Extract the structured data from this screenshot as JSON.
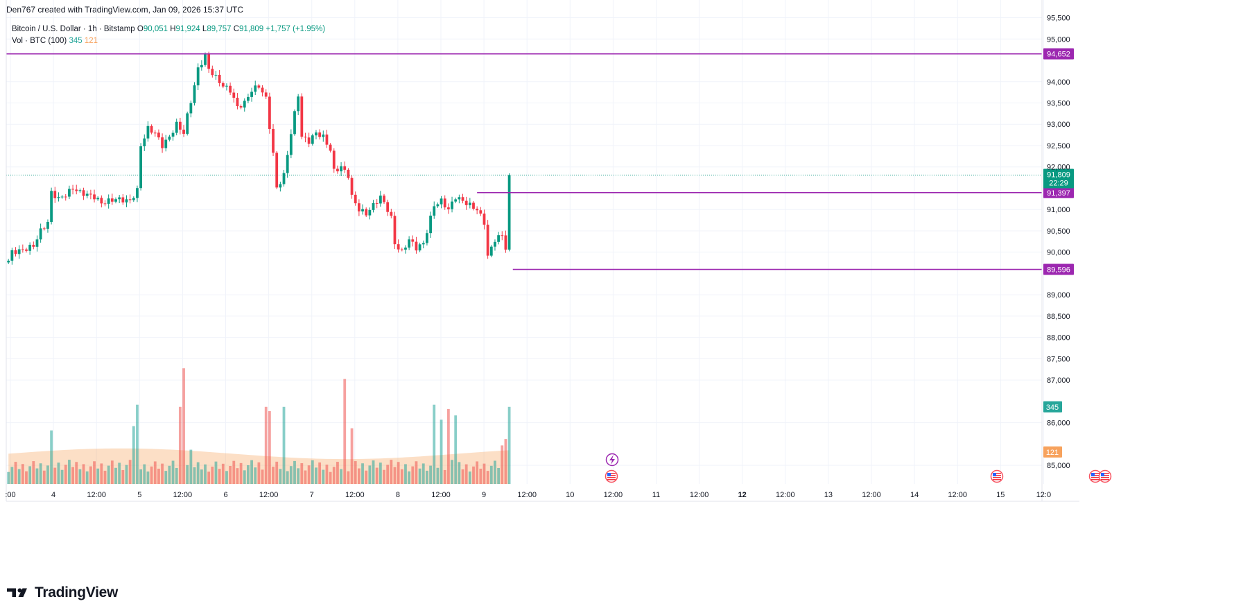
{
  "header": {
    "created_by": "Den767 created with TradingView.com, Jan 09, 2026 15:37 UTC"
  },
  "legend": {
    "symbol": "Bitcoin / U.S. Dollar · 1h · Bitstamp",
    "o_label": "O",
    "o_value": "90,051",
    "h_label": "H",
    "h_value": "91,924",
    "l_label": "L",
    "l_value": "89,757",
    "c_label": "C",
    "c_value": "91,809",
    "change": "+1,757 (+1.95%)",
    "vol_name": "Vol · BTC (100)",
    "vol_value": "345",
    "vol_ma_value": "121"
  },
  "brand": {
    "name": "TradingView"
  },
  "colors": {
    "up": "#089981",
    "down": "#f23645",
    "vol_up": "#26a69a",
    "vol_down": "#ef5350",
    "vol_ma": "#f7a25d",
    "level_line": "#9c27b0",
    "price_label_bg": "#9c27b0",
    "last_price_bg": "#089981",
    "grid": "#f0f3fa",
    "axis_text": "#131722"
  },
  "chart_data": {
    "type": "candlestick",
    "symbol": "BTCUSD",
    "interval": "1h",
    "exchange": "Bitstamp",
    "y_axis": {
      "range": [
        84700,
        95800
      ],
      "ticks": [
        "95,500",
        "95,000",
        "94,000",
        "93,500",
        "93,000",
        "92,500",
        "92,000",
        "91,000",
        "90,500",
        "90,000",
        "89,000",
        "88,500",
        "88,000",
        "87,500",
        "87,000",
        "86,000",
        "85,000"
      ],
      "labels": {
        "last_price": "91,809",
        "countdown": "22:29",
        "vol_value": "345",
        "vol_ma": "121"
      }
    },
    "x_axis": {
      "ticks": [
        ":00",
        "4",
        "12:00",
        "5",
        "12:00",
        "6",
        "12:00",
        "7",
        "12:00",
        "8",
        "12:00",
        "9",
        "12:00",
        "10",
        "12:00",
        "11",
        "12:00",
        "12",
        "12:00",
        "13",
        "12:00",
        "14",
        "12:00",
        "15",
        "12:0"
      ],
      "bold_ticks": [
        "12"
      ]
    },
    "last_price": 91809,
    "horizontal_levels": [
      {
        "label": "94,652",
        "price": 94652
      },
      {
        "label": "91,397",
        "price": 91397
      },
      {
        "label": "89,596",
        "price": 89596
      }
    ],
    "candle_path": [
      [
        0,
        89800
      ],
      [
        1,
        90000
      ],
      [
        4,
        90050
      ],
      [
        7,
        90150
      ],
      [
        9,
        90500
      ],
      [
        11,
        90700
      ],
      [
        12,
        91400
      ],
      [
        14,
        91250
      ],
      [
        16,
        91350
      ],
      [
        18,
        91500
      ],
      [
        20,
        91400
      ],
      [
        24,
        91300
      ],
      [
        26,
        91150
      ],
      [
        30,
        91250
      ],
      [
        34,
        91200
      ],
      [
        36,
        91450
      ],
      [
        37,
        92500
      ],
      [
        39,
        92900
      ],
      [
        41,
        92800
      ],
      [
        43,
        92500
      ],
      [
        45,
        92700
      ],
      [
        47,
        93000
      ],
      [
        49,
        92800
      ],
      [
        50,
        93200
      ],
      [
        52,
        93900
      ],
      [
        53,
        94300
      ],
      [
        55,
        94600
      ],
      [
        56,
        94300
      ],
      [
        58,
        94100
      ],
      [
        60,
        93900
      ],
      [
        62,
        93800
      ],
      [
        64,
        93400
      ],
      [
        66,
        93500
      ],
      [
        68,
        93800
      ],
      [
        70,
        93900
      ],
      [
        72,
        93600
      ],
      [
        74,
        92300
      ],
      [
        75,
        91500
      ],
      [
        77,
        91800
      ],
      [
        79,
        92800
      ],
      [
        81,
        93700
      ],
      [
        82,
        92700
      ],
      [
        84,
        92600
      ],
      [
        86,
        92800
      ],
      [
        88,
        92700
      ],
      [
        90,
        92400
      ],
      [
        91,
        91900
      ],
      [
        93,
        92000
      ],
      [
        95,
        91800
      ],
      [
        96,
        91300
      ],
      [
        98,
        91000
      ],
      [
        100,
        90900
      ],
      [
        102,
        91100
      ],
      [
        104,
        91300
      ],
      [
        106,
        91000
      ],
      [
        107,
        90800
      ],
      [
        108,
        90200
      ],
      [
        110,
        90000
      ],
      [
        112,
        90300
      ],
      [
        114,
        90100
      ],
      [
        116,
        90200
      ],
      [
        118,
        90800
      ],
      [
        119,
        91100
      ],
      [
        121,
        91200
      ],
      [
        123,
        91000
      ],
      [
        125,
        91300
      ],
      [
        127,
        91200
      ],
      [
        129,
        91100
      ],
      [
        131,
        91000
      ],
      [
        133,
        90700
      ],
      [
        134,
        89900
      ],
      [
        136,
        90300
      ],
      [
        138,
        90400
      ],
      [
        139,
        90100
      ],
      [
        140,
        91809
      ]
    ],
    "volume": {
      "scale_max": 2800,
      "vol_ma_level": 830,
      "peaks": [
        [
          12,
          1250
        ],
        [
          35,
          1350
        ],
        [
          36,
          1850
        ],
        [
          48,
          1800
        ],
        [
          49,
          2700
        ],
        [
          51,
          800
        ],
        [
          72,
          1800
        ],
        [
          73,
          1700
        ],
        [
          77,
          1800
        ],
        [
          94,
          2450
        ],
        [
          96,
          1300
        ],
        [
          119,
          1850
        ],
        [
          121,
          1500
        ],
        [
          123,
          1750
        ],
        [
          125,
          1600
        ],
        [
          138,
          900
        ],
        [
          139,
          1050
        ],
        [
          140,
          1800
        ]
      ]
    }
  }
}
